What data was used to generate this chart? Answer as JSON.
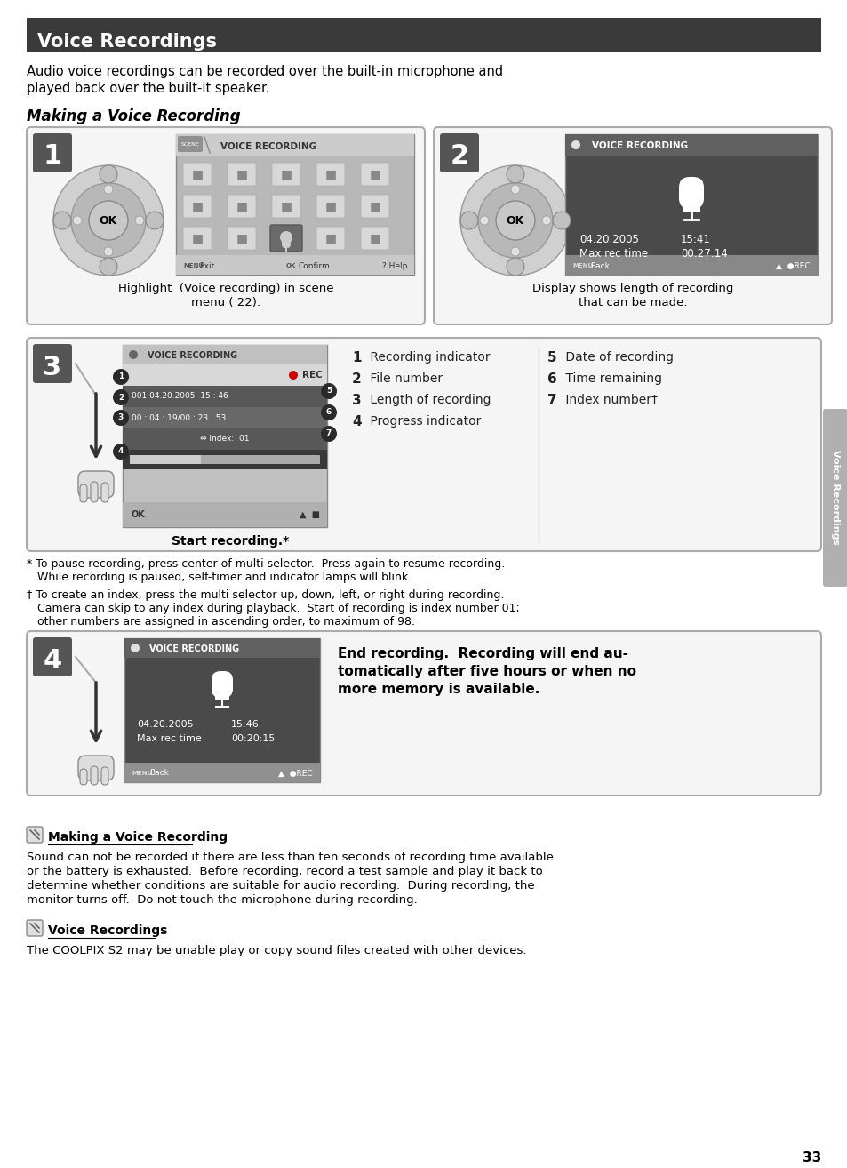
{
  "title": "Voice Recordings",
  "title_bg": "#3a3a3a",
  "title_color": "#ffffff",
  "page_bg": "#ffffff",
  "intro_text_line1": "Audio voice recordings can be recorded over the built-in microphone and",
  "intro_text_line2": "played back over the built-it speaker.",
  "section_italic": "Making a Voice Recording",
  "step1_caption_line1": "Highlight  (Voice recording) in scene",
  "step1_caption_line2": "menu ( 22).",
  "step2_caption_line1": "Display shows length of recording",
  "step2_caption_line2": "that can be made.",
  "step3_caption": "Start recording.*",
  "step4_caption_line1": "End recording.  Recording will end au-",
  "step4_caption_line2": "tomatically after five hours or when no",
  "step4_caption_line3": "more memory is available.",
  "footnote1_line1": "* To pause recording, press center of multi selector.  Press again to resume recording.",
  "footnote1_line2": "   While recording is paused, self-timer and indicator lamps will blink.",
  "footnote2_line1": "† To create an index, press the multi selector up, down, left, or right during recording.",
  "footnote2_line2": "   Camera can skip to any index during playback.  Start of recording is index number 01;",
  "footnote2_line3": "   other numbers are assigned in ascending order, to maximum of 98.",
  "note1_title": "Making a Voice Recording",
  "note1_body_line1": "Sound can not be recorded if there are less than ten seconds of recording time available",
  "note1_body_line2": "or the battery is exhausted.  Before recording, record a test sample and play it back to",
  "note1_body_line3": "determine whether conditions are suitable for audio recording.  During recording, the",
  "note1_body_line4": "monitor turns off.  Do not touch the microphone during recording.",
  "note2_title": "Voice Recordings",
  "note2_body": "The COOLPIX S2 may be unable play or copy sound files created with other devices.",
  "page_number": "33",
  "sidebar_text": "Voice Recordings",
  "step_bg": "#555555",
  "box_border": "#aaaaaa",
  "box_bg": "#f5f5f5",
  "screen1_bg": "#b8b8b8",
  "screen1_header_bg": "#c8c8c8",
  "screen_dark_bg": "#4a4a4a",
  "screen_dark_row1": "#5a5a5a",
  "screen_dark_row2": "#404040",
  "screen_white": "#ffffff",
  "screen_light_bar": "#c0c0c0"
}
